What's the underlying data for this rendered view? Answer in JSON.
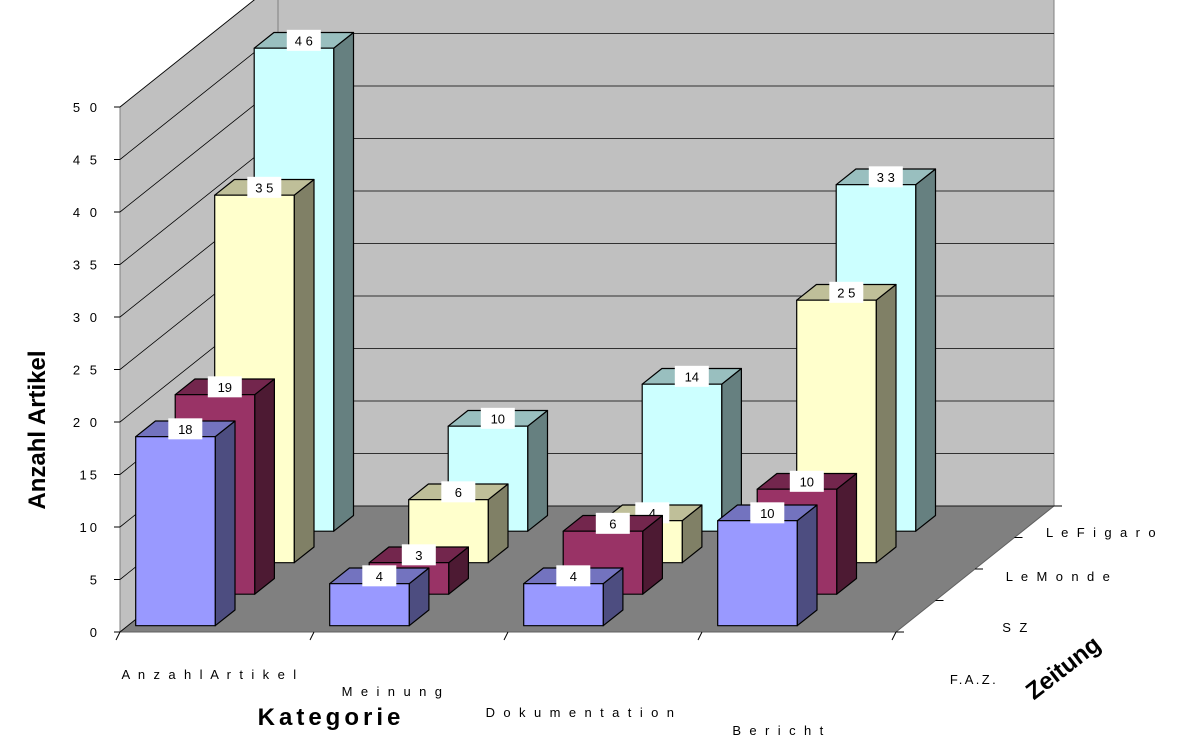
{
  "chart_data": {
    "type": "bar",
    "subtype": "3d-clustered",
    "title": "",
    "ylabel": "Anzahl Artikel",
    "xlabel": "Kategorie",
    "zlabel": "Zeitung",
    "ylim": [
      0,
      50
    ],
    "ytick_labels": [
      "0",
      "5",
      "10",
      "15",
      "2 0",
      "2 5",
      "3 0",
      "3 5",
      "4 0",
      "4 5",
      "5 0"
    ],
    "categories": [
      "A n z a h l A r t i k e l",
      "M e i n u n g",
      "D o k u m e n t a t i o n",
      "B e r i c h t"
    ],
    "series": [
      {
        "name": "F.A.Z.",
        "values": [
          18,
          4,
          4,
          10
        ],
        "labels": [
          "18",
          "4",
          "4",
          "10"
        ],
        "color": "#9999ff"
      },
      {
        "name": "SZ",
        "values": [
          19,
          3,
          6,
          10
        ],
        "labels": [
          "19",
          "3",
          "6",
          "10"
        ],
        "color": "#993366"
      },
      {
        "name": "Le Monde",
        "values": [
          35,
          6,
          4,
          25
        ],
        "labels": [
          "3 5",
          "6",
          "4",
          "2 5"
        ],
        "color": "#ffffcc"
      },
      {
        "name": "Le Figaro",
        "values": [
          46,
          10,
          14,
          33
        ],
        "labels": [
          "4 6",
          "10",
          "14",
          "3 3"
        ],
        "color": "#ccffff"
      }
    ],
    "depth_labels": [
      "F.A.Z.",
      "S Z",
      "L e  M o n d e",
      "L e  F i g a r o"
    ],
    "grid": true,
    "legend": "none"
  }
}
